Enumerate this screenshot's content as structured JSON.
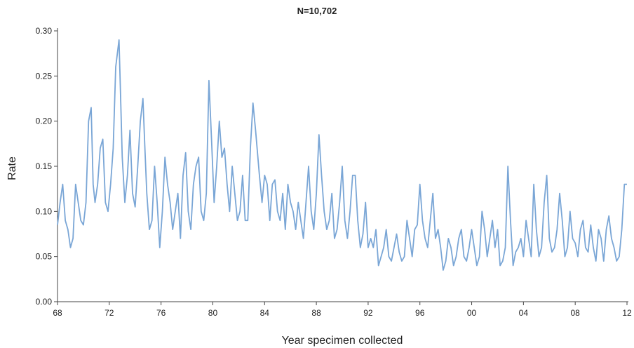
{
  "chart_data": {
    "type": "line",
    "title": "N=10,702",
    "xlabel": "Year specimen collected",
    "ylabel": "Rate",
    "xlim": [
      1968,
      2012
    ],
    "ylim": [
      0,
      0.3
    ],
    "x_ticks": [
      1968,
      1972,
      1976,
      1980,
      1984,
      1988,
      1992,
      1996,
      2000,
      2004,
      2008,
      2012
    ],
    "x_tick_labels": [
      "68",
      "72",
      "76",
      "80",
      "84",
      "88",
      "92",
      "96",
      "00",
      "04",
      "08",
      "12"
    ],
    "y_ticks": [
      0,
      0.05,
      0.1,
      0.15,
      0.2,
      0.25,
      0.3
    ],
    "y_tick_labels": [
      "0.00",
      "0.05",
      "0.10",
      "0.15",
      "0.20",
      "0.25",
      "0.30"
    ],
    "grid": false,
    "legend": "none",
    "color": "#7aa6d6",
    "series": [
      {
        "x": [
          1968.0,
          1968.2,
          1968.4,
          1968.6,
          1968.8,
          1969.0,
          1969.2,
          1969.4,
          1969.6,
          1969.8,
          1970.0,
          1970.2,
          1970.4,
          1970.6,
          1970.75,
          1970.9,
          1971.1,
          1971.3,
          1971.5,
          1971.7,
          1971.9,
          1972.1,
          1972.3,
          1972.5,
          1972.75,
          1972.85,
          1973.0,
          1973.2,
          1973.4,
          1973.6,
          1973.8,
          1974.0,
          1974.2,
          1974.4,
          1974.6,
          1974.75,
          1974.9,
          1975.1,
          1975.3,
          1975.5,
          1975.7,
          1975.9,
          1976.1,
          1976.3,
          1976.5,
          1976.7,
          1976.9,
          1977.1,
          1977.3,
          1977.5,
          1977.7,
          1977.9,
          1978.1,
          1978.3,
          1978.5,
          1978.7,
          1978.9,
          1979.1,
          1979.3,
          1979.5,
          1979.7,
          1979.9,
          1980.1,
          1980.3,
          1980.5,
          1980.7,
          1980.9,
          1981.1,
          1981.3,
          1981.5,
          1981.7,
          1981.9,
          1982.1,
          1982.3,
          1982.5,
          1982.7,
          1982.9,
          1983.1,
          1983.3,
          1983.6,
          1983.8,
          1984.0,
          1984.2,
          1984.4,
          1984.6,
          1984.8,
          1985.0,
          1985.2,
          1985.4,
          1985.6,
          1985.8,
          1986.0,
          1986.2,
          1986.4,
          1986.6,
          1986.8,
          1987.0,
          1987.2,
          1987.4,
          1987.6,
          1987.8,
          1988.0,
          1988.2,
          1988.4,
          1988.6,
          1988.8,
          1989.0,
          1989.2,
          1989.4,
          1989.6,
          1989.8,
          1990.0,
          1990.2,
          1990.4,
          1990.6,
          1990.8,
          1991.0,
          1991.2,
          1991.4,
          1991.6,
          1991.8,
          1992.0,
          1992.2,
          1992.4,
          1992.6,
          1992.8,
          1993.0,
          1993.2,
          1993.4,
          1993.6,
          1993.8,
          1994.0,
          1994.2,
          1994.4,
          1994.6,
          1994.8,
          1995.0,
          1995.2,
          1995.4,
          1995.6,
          1995.8,
          1996.0,
          1996.2,
          1996.4,
          1996.6,
          1996.8,
          1997.0,
          1997.2,
          1997.4,
          1997.6,
          1997.8,
          1998.0,
          1998.2,
          1998.4,
          1998.6,
          1998.8,
          1999.0,
          1999.2,
          1999.4,
          1999.6,
          1999.8,
          2000.0,
          2000.2,
          2000.4,
          2000.6,
          2000.8,
          2001.0,
          2001.2,
          2001.4,
          2001.6,
          2001.8,
          2002.0,
          2002.2,
          2002.4,
          2002.6,
          2002.8,
          2003.0,
          2003.2,
          2003.4,
          2003.6,
          2003.8,
          2004.0,
          2004.2,
          2004.4,
          2004.6,
          2004.8,
          2005.0,
          2005.2,
          2005.4,
          2005.6,
          2005.8,
          2006.0,
          2006.2,
          2006.4,
          2006.6,
          2006.8,
          2007.0,
          2007.2,
          2007.4,
          2007.6,
          2007.8,
          2008.0,
          2008.2,
          2008.4,
          2008.6,
          2008.8,
          2009.0,
          2009.2,
          2009.4,
          2009.6,
          2009.8,
          2010.0,
          2010.2,
          2010.4,
          2010.6,
          2010.8,
          2011.0,
          2011.2,
          2011.4,
          2011.6,
          2011.8,
          2012.0
        ],
        "y": [
          0.085,
          0.11,
          0.13,
          0.09,
          0.08,
          0.06,
          0.07,
          0.13,
          0.11,
          0.09,
          0.085,
          0.11,
          0.2,
          0.215,
          0.13,
          0.11,
          0.13,
          0.17,
          0.18,
          0.11,
          0.1,
          0.13,
          0.17,
          0.26,
          0.29,
          0.24,
          0.16,
          0.11,
          0.14,
          0.19,
          0.12,
          0.105,
          0.15,
          0.2,
          0.225,
          0.17,
          0.12,
          0.08,
          0.09,
          0.15,
          0.11,
          0.06,
          0.1,
          0.16,
          0.13,
          0.11,
          0.08,
          0.1,
          0.12,
          0.07,
          0.14,
          0.165,
          0.1,
          0.08,
          0.13,
          0.15,
          0.16,
          0.1,
          0.09,
          0.12,
          0.245,
          0.18,
          0.11,
          0.15,
          0.2,
          0.16,
          0.17,
          0.13,
          0.1,
          0.15,
          0.12,
          0.09,
          0.1,
          0.14,
          0.09,
          0.09,
          0.17,
          0.22,
          0.19,
          0.14,
          0.11,
          0.14,
          0.13,
          0.09,
          0.13,
          0.135,
          0.1,
          0.09,
          0.12,
          0.08,
          0.13,
          0.11,
          0.1,
          0.08,
          0.11,
          0.09,
          0.07,
          0.11,
          0.15,
          0.1,
          0.08,
          0.12,
          0.185,
          0.14,
          0.1,
          0.08,
          0.09,
          0.12,
          0.07,
          0.08,
          0.11,
          0.15,
          0.09,
          0.07,
          0.1,
          0.14,
          0.14,
          0.09,
          0.06,
          0.075,
          0.11,
          0.06,
          0.07,
          0.06,
          0.08,
          0.04,
          0.05,
          0.06,
          0.08,
          0.05,
          0.045,
          0.06,
          0.075,
          0.055,
          0.045,
          0.05,
          0.09,
          0.07,
          0.05,
          0.08,
          0.085,
          0.13,
          0.09,
          0.07,
          0.06,
          0.09,
          0.12,
          0.07,
          0.08,
          0.06,
          0.035,
          0.045,
          0.07,
          0.06,
          0.04,
          0.05,
          0.07,
          0.08,
          0.05,
          0.045,
          0.06,
          0.08,
          0.06,
          0.04,
          0.05,
          0.1,
          0.08,
          0.05,
          0.07,
          0.09,
          0.06,
          0.08,
          0.04,
          0.045,
          0.06,
          0.15,
          0.09,
          0.04,
          0.055,
          0.06,
          0.07,
          0.05,
          0.09,
          0.07,
          0.05,
          0.13,
          0.08,
          0.05,
          0.06,
          0.11,
          0.14,
          0.07,
          0.055,
          0.06,
          0.08,
          0.12,
          0.09,
          0.05,
          0.06,
          0.1,
          0.07,
          0.065,
          0.05,
          0.08,
          0.09,
          0.06,
          0.055,
          0.085,
          0.06,
          0.045,
          0.08,
          0.07,
          0.045,
          0.08,
          0.095,
          0.07,
          0.06,
          0.045,
          0.05,
          0.08,
          0.13,
          0.13
        ]
      }
    ]
  }
}
